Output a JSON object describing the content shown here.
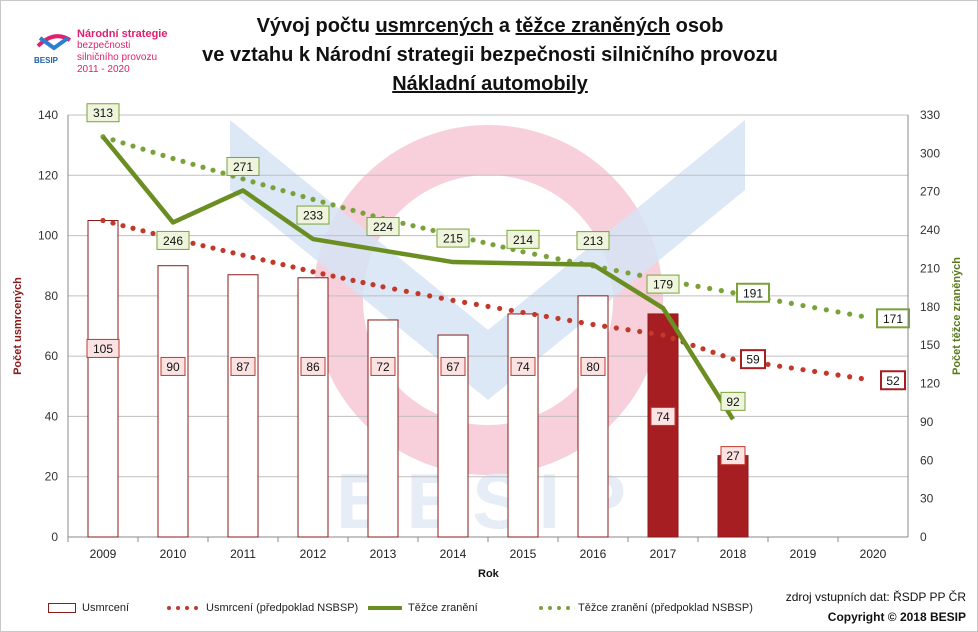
{
  "logo": {
    "line1": "Národní strategie",
    "line2": "bezpečnosti",
    "line3": "silničního provozu",
    "line4": "2011 - 2020",
    "badge": "BESIP"
  },
  "title": {
    "line1_a": "Vývoj počtu ",
    "line1_b": "usmrcených",
    "line1_c": " a ",
    "line1_d": "těžce zraněných",
    "line1_e": " osob",
    "line2": "ve vztahu k Národní strategii bezpečnosti silničního provozu",
    "line3": "Nákladní automobily"
  },
  "watermark": "BESIP",
  "source": "zdroj vstupních dat: ŘSDP PP ČR",
  "copyright": "Copyright © 2018  BESIP",
  "chart_data": {
    "type": "bar",
    "categories": [
      "2009",
      "2010",
      "2011",
      "2012",
      "2013",
      "2014",
      "2015",
      "2016",
      "2017",
      "2018",
      "2019",
      "2020"
    ],
    "xlabel": "Rok",
    "ylabel": "Počet usmrcených",
    "y2label": "Počet těžce zraněných",
    "ylim": [
      0,
      140
    ],
    "yticks": [
      0,
      20,
      40,
      60,
      80,
      100,
      120,
      140
    ],
    "y2lim": [
      0,
      330
    ],
    "y2ticks": [
      0,
      30,
      60,
      90,
      120,
      150,
      180,
      210,
      240,
      270,
      300,
      330
    ],
    "grid": true,
    "legend_position": "bottom",
    "series": [
      {
        "name": "Usmrcení",
        "kind": "bar",
        "axis": "left",
        "values": [
          105,
          90,
          87,
          86,
          72,
          67,
          74,
          80,
          74,
          27,
          null,
          null
        ],
        "labels": [
          "105",
          "90",
          "87",
          "86",
          "72",
          "67",
          "74",
          "80",
          "74",
          "27",
          "",
          ""
        ],
        "color": "#ffffff",
        "border": "#8b1a1a",
        "highlight_color": "#a61e22",
        "highlight_from_index": 8
      },
      {
        "name": "Usmrcení (předpoklad NSBSP)",
        "kind": "dotted-line",
        "axis": "left",
        "values": [
          105,
          99,
          93.5,
          88,
          83,
          78.5,
          74.5,
          70.5,
          67,
          59,
          55.5,
          52
        ],
        "end_label": "59",
        "end_label2": "52",
        "color": "#c0392b"
      },
      {
        "name": "Těžce zranění",
        "kind": "line",
        "axis": "right",
        "values": [
          313,
          246,
          271,
          233,
          224,
          215,
          214,
          213,
          179,
          92,
          null,
          null
        ],
        "labels": [
          "313",
          "246",
          "271",
          "233",
          "224",
          "215",
          "214",
          "213",
          "179",
          "92",
          "",
          ""
        ],
        "color": "#6b8e23"
      },
      {
        "name": "Těžce zranění (předpoklad NSBSP)",
        "kind": "dotted-line",
        "axis": "right",
        "values": [
          313,
          296,
          280,
          264,
          249,
          236,
          223,
          212,
          201,
          191,
          181,
          171
        ],
        "end_label": "191",
        "end_label2": "171",
        "color": "#7aa23a"
      }
    ]
  }
}
